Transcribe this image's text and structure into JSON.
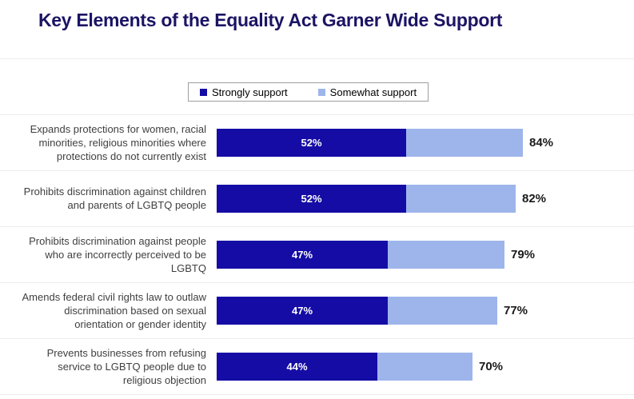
{
  "page": {
    "title": "Key Elements of the Equality Act Garner Wide Support"
  },
  "chart_data": {
    "type": "bar",
    "orientation": "horizontal",
    "stacked": true,
    "title": "Key Elements of the Equality Act Garner Wide Support",
    "legend_position": "top",
    "axis_max": 100,
    "grid": false,
    "categories": [
      "Expands protections for women, racial minorities, religious minorities where protections do not currently exist",
      "Prohibits discrimination against children and parents of LGBTQ people",
      "Prohibits discrimination against people who are incorrectly perceived to be LGBTQ",
      "Amends federal civil rights law to outlaw discrimination based on sexual orientation or gender identity",
      "Prevents businesses from refusing service to LGBTQ people due to religious objection"
    ],
    "series": [
      {
        "name": "Strongly support",
        "color": "#150ca5",
        "values": [
          52,
          52,
          47,
          47,
          44
        ]
      },
      {
        "name": "Somewhat support",
        "color": "#9eb5eb",
        "values": [
          32,
          30,
          32,
          30,
          26
        ]
      }
    ],
    "totals": [
      84,
      82,
      79,
      77,
      70
    ],
    "bar_value_labels": [
      "52%",
      "52%",
      "47%",
      "47%",
      "44%"
    ],
    "total_labels": [
      "84%",
      "82%",
      "79%",
      "77%",
      "70%"
    ],
    "colors": {
      "strongly_support": "#150ca5",
      "somewhat_support": "#9eb5eb",
      "title_text": "#1b1464",
      "category_text": "#3f3f3f",
      "value_text_on_bar": "#ffffff",
      "total_text": "#1a1a1a",
      "legend_border": "#9e9e9e"
    }
  }
}
